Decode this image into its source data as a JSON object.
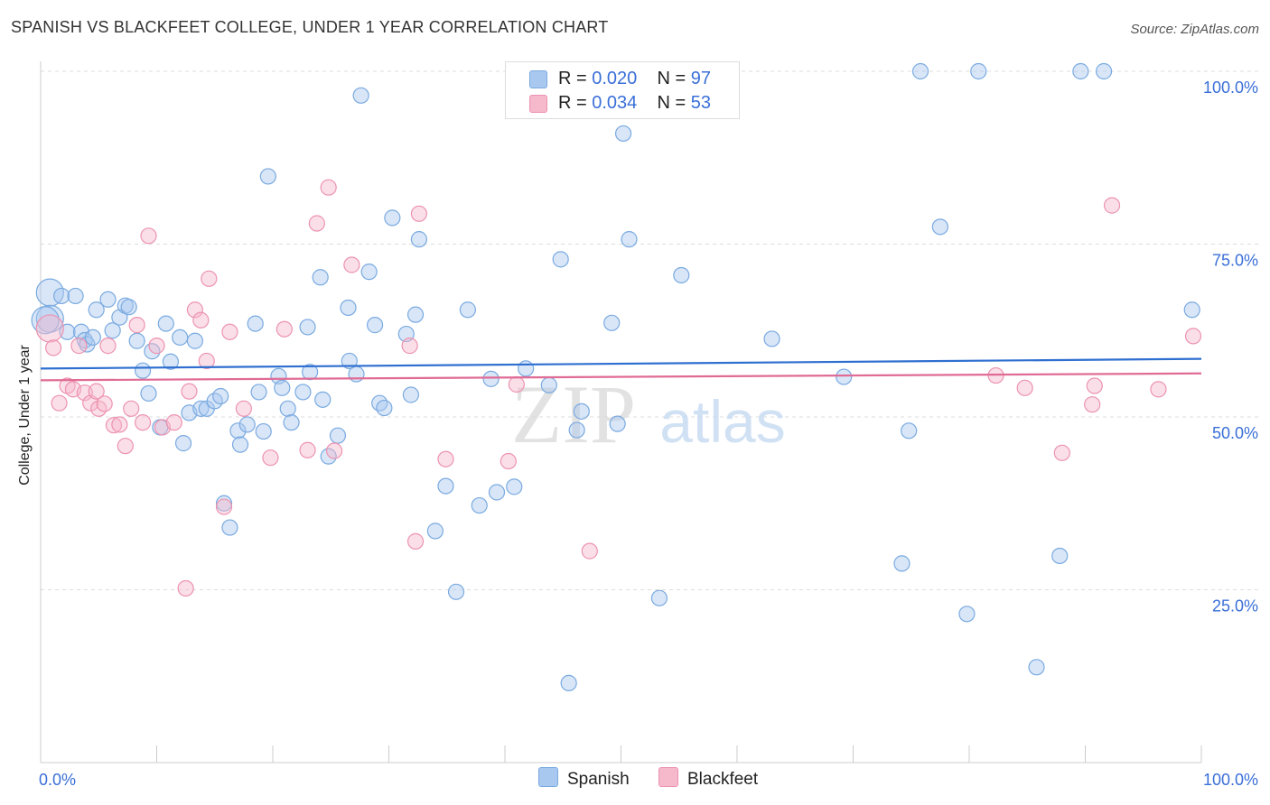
{
  "title": "SPANISH VS BLACKFEET COLLEGE, UNDER 1 YEAR CORRELATION CHART",
  "source": "Source: ZipAtlas.com",
  "watermark": {
    "zip": "ZIP",
    "atlas": "atlas"
  },
  "legend": {
    "spanish": {
      "r_label": "R = ",
      "r": "0.020",
      "n_label": "N = ",
      "n": "97"
    },
    "blackfeet": {
      "r_label": "R = ",
      "r": "0.034",
      "n_label": "N = ",
      "n": "53"
    }
  },
  "bottom_legend": {
    "spanish": "Spanish",
    "blackfeet": "Blackfeet"
  },
  "colors": {
    "spanish_fill": "#a9c8f0",
    "spanish_stroke": "#7aaae0",
    "spanish_line": "#2f6fd0",
    "blackfeet_fill": "#f6b8cb",
    "blackfeet_stroke": "#ec93b0",
    "blackfeet_line": "#e06b95",
    "tick_label": "#3a6fd8",
    "grid": "#dddddd"
  },
  "chart_data": {
    "type": "scatter",
    "title": "SPANISH VS BLACKFEET COLLEGE, UNDER 1 YEAR CORRELATION CHART",
    "xlabel": "",
    "ylabel": "College, Under 1 year",
    "xlim": [
      0,
      100
    ],
    "ylim": [
      0,
      100
    ],
    "x_tick_labels": [
      "0.0%",
      "100.0%"
    ],
    "y_ticks": [
      25,
      50,
      75,
      100
    ],
    "y_tick_labels": [
      "25.0%",
      "50.0%",
      "75.0%",
      "100.0%"
    ],
    "series": [
      {
        "name": "Spanish",
        "trend": {
          "y_at_0": 57.0,
          "y_at_100": 58.4
        },
        "points": [
          [
            0.8,
            64.2
          ],
          [
            0.8,
            68.0
          ],
          [
            1.8,
            67.5
          ],
          [
            2.3,
            62.3
          ],
          [
            3.0,
            67.5
          ],
          [
            3.5,
            62.3
          ],
          [
            3.8,
            61.1
          ],
          [
            4.0,
            60.5
          ],
          [
            4.5,
            61.5
          ],
          [
            4.8,
            65.5
          ],
          [
            5.8,
            67.0
          ],
          [
            6.2,
            62.5
          ],
          [
            6.8,
            64.4
          ],
          [
            7.3,
            66.1
          ],
          [
            7.6,
            65.9
          ],
          [
            8.3,
            61.0
          ],
          [
            8.8,
            56.7
          ],
          [
            9.3,
            53.4
          ],
          [
            9.6,
            59.5
          ],
          [
            10.3,
            48.5
          ],
          [
            10.8,
            63.5
          ],
          [
            11.2,
            58.0
          ],
          [
            12.0,
            61.5
          ],
          [
            12.3,
            46.2
          ],
          [
            12.8,
            50.6
          ],
          [
            13.3,
            61.0
          ],
          [
            13.8,
            51.2
          ],
          [
            14.3,
            51.2
          ],
          [
            15.0,
            52.3
          ],
          [
            15.5,
            53.0
          ],
          [
            15.8,
            37.5
          ],
          [
            16.3,
            34.0
          ],
          [
            17.0,
            48.0
          ],
          [
            17.2,
            46.0
          ],
          [
            17.8,
            48.9
          ],
          [
            18.5,
            63.5
          ],
          [
            18.8,
            53.6
          ],
          [
            19.2,
            47.9
          ],
          [
            19.6,
            84.8
          ],
          [
            20.5,
            55.9
          ],
          [
            20.8,
            54.2
          ],
          [
            21.3,
            51.2
          ],
          [
            21.6,
            49.2
          ],
          [
            22.6,
            53.6
          ],
          [
            23.0,
            63.0
          ],
          [
            23.2,
            56.5
          ],
          [
            24.1,
            70.2
          ],
          [
            24.3,
            52.5
          ],
          [
            24.8,
            44.3
          ],
          [
            25.6,
            47.3
          ],
          [
            26.5,
            65.8
          ],
          [
            26.6,
            58.1
          ],
          [
            27.2,
            56.2
          ],
          [
            27.6,
            96.5
          ],
          [
            28.3,
            71.0
          ],
          [
            28.8,
            63.3
          ],
          [
            29.2,
            52.0
          ],
          [
            29.6,
            51.3
          ],
          [
            30.3,
            78.8
          ],
          [
            31.5,
            62.0
          ],
          [
            31.9,
            53.2
          ],
          [
            32.3,
            64.8
          ],
          [
            32.6,
            75.7
          ],
          [
            34.0,
            33.5
          ],
          [
            34.9,
            40.0
          ],
          [
            35.8,
            24.7
          ],
          [
            36.8,
            65.5
          ],
          [
            37.8,
            37.2
          ],
          [
            38.8,
            55.5
          ],
          [
            39.3,
            39.1
          ],
          [
            40.8,
            39.9
          ],
          [
            41.8,
            57.0
          ],
          [
            43.8,
            54.6
          ],
          [
            44.8,
            72.8
          ],
          [
            45.5,
            11.5
          ],
          [
            46.2,
            48.1
          ],
          [
            46.6,
            50.8
          ],
          [
            49.2,
            63.6
          ],
          [
            49.7,
            49.0
          ],
          [
            50.2,
            91.0
          ],
          [
            50.7,
            75.7
          ],
          [
            53.3,
            23.8
          ],
          [
            55.2,
            70.5
          ],
          [
            63.0,
            61.3
          ],
          [
            69.2,
            55.8
          ],
          [
            74.2,
            28.8
          ],
          [
            74.8,
            48.0
          ],
          [
            75.8,
            100.0
          ],
          [
            77.5,
            77.5
          ],
          [
            79.8,
            21.5
          ],
          [
            80.8,
            100.0
          ],
          [
            85.8,
            13.8
          ],
          [
            87.8,
            29.9
          ],
          [
            89.6,
            100.0
          ],
          [
            91.6,
            100.0
          ],
          [
            99.2,
            65.5
          ],
          [
            0.4,
            64.0
          ]
        ]
      },
      {
        "name": "Blackfeet",
        "trend": {
          "y_at_0": 55.3,
          "y_at_100": 56.3
        },
        "points": [
          [
            0.8,
            62.8
          ],
          [
            1.1,
            60.0
          ],
          [
            1.6,
            52.0
          ],
          [
            2.3,
            54.5
          ],
          [
            2.8,
            54.0
          ],
          [
            3.3,
            60.3
          ],
          [
            3.8,
            53.5
          ],
          [
            4.3,
            52.0
          ],
          [
            4.8,
            53.7
          ],
          [
            5.0,
            51.2
          ],
          [
            5.5,
            51.9
          ],
          [
            5.8,
            60.3
          ],
          [
            6.3,
            48.8
          ],
          [
            6.8,
            48.9
          ],
          [
            7.3,
            45.8
          ],
          [
            7.8,
            51.2
          ],
          [
            8.3,
            63.3
          ],
          [
            8.8,
            49.2
          ],
          [
            9.3,
            76.2
          ],
          [
            10.0,
            60.3
          ],
          [
            10.5,
            48.5
          ],
          [
            11.5,
            49.2
          ],
          [
            12.5,
            25.2
          ],
          [
            12.8,
            53.7
          ],
          [
            13.3,
            65.5
          ],
          [
            13.8,
            64.0
          ],
          [
            14.3,
            58.1
          ],
          [
            14.5,
            70.0
          ],
          [
            15.8,
            37.0
          ],
          [
            16.3,
            62.3
          ],
          [
            17.5,
            51.2
          ],
          [
            19.8,
            44.1
          ],
          [
            21.0,
            62.7
          ],
          [
            23.0,
            45.2
          ],
          [
            23.8,
            78.0
          ],
          [
            24.8,
            83.2
          ],
          [
            25.3,
            45.1
          ],
          [
            26.8,
            72.0
          ],
          [
            31.8,
            60.3
          ],
          [
            32.3,
            32.0
          ],
          [
            32.6,
            79.4
          ],
          [
            34.9,
            43.9
          ],
          [
            40.3,
            43.6
          ],
          [
            41.0,
            54.7
          ],
          [
            47.3,
            30.6
          ],
          [
            82.3,
            56.0
          ],
          [
            84.8,
            54.2
          ],
          [
            88.0,
            44.8
          ],
          [
            90.6,
            51.8
          ],
          [
            92.3,
            80.6
          ],
          [
            96.3,
            54.0
          ],
          [
            99.3,
            61.7
          ],
          [
            90.8,
            54.5
          ]
        ]
      }
    ]
  }
}
